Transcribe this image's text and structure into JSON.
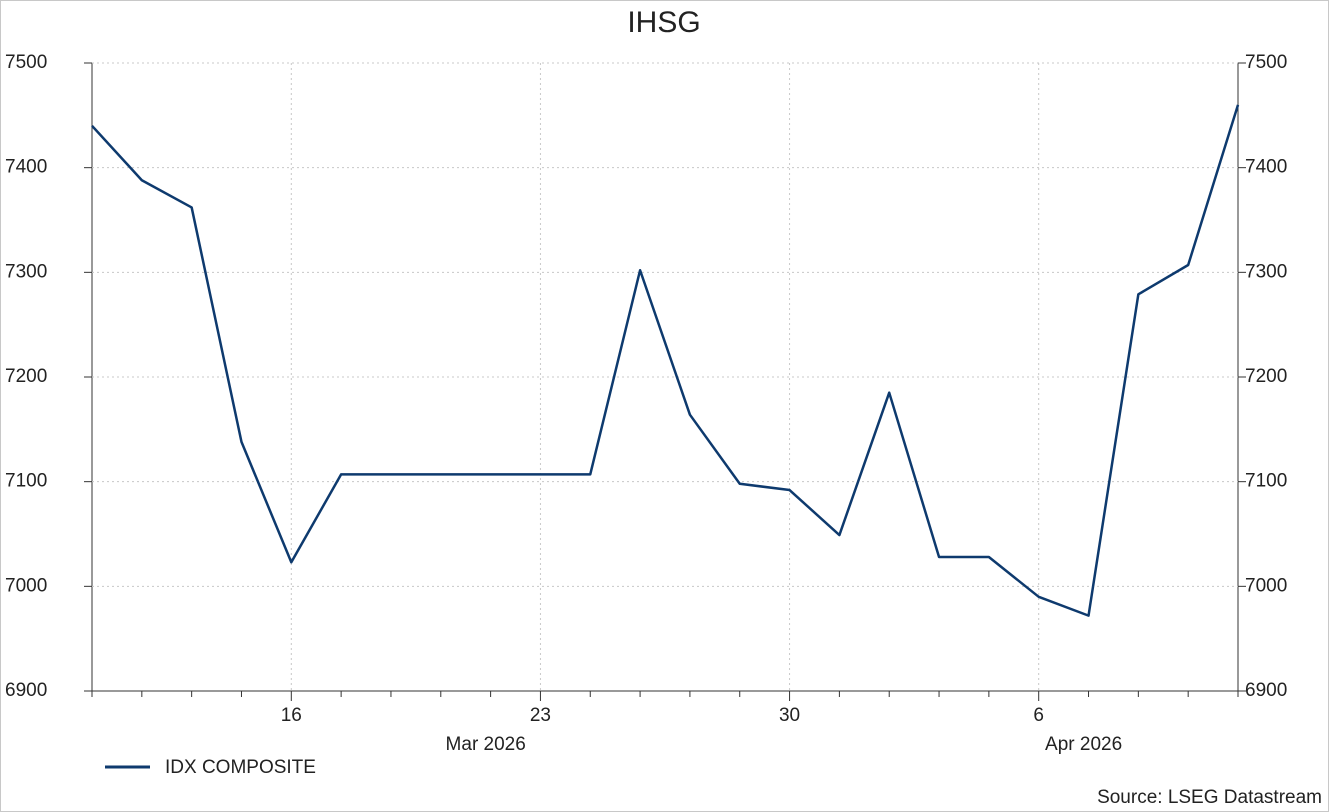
{
  "chart_data": {
    "type": "line",
    "title": "IHSG",
    "categories": [
      null,
      null,
      null,
      null,
      "16",
      null,
      null,
      null,
      null,
      "23",
      null,
      null,
      null,
      null,
      "30",
      null,
      null,
      null,
      null,
      "6",
      null,
      null,
      null,
      null
    ],
    "month_labels": [
      {
        "label": "Mar 2026",
        "first": 0,
        "last": 15
      },
      {
        "label": "Apr 2026",
        "first": 16,
        "last": 23
      }
    ],
    "series": [
      {
        "name": "IDX COMPOSITE",
        "color": "#0e3a6e",
        "values": [
          7440,
          7388,
          7362,
          7138,
          7023,
          7107,
          7107,
          7107,
          7107,
          7107,
          7107,
          7302,
          7164,
          7098,
          7092,
          7049,
          7185,
          7028,
          7028,
          6990,
          6972,
          7279,
          7307,
          7460
        ]
      }
    ],
    "ylim": [
      6900,
      7500
    ],
    "yticks": [
      6900,
      7000,
      7100,
      7200,
      7300,
      7400,
      7500
    ],
    "grid": true,
    "source": "Source: LSEG Datastream"
  }
}
